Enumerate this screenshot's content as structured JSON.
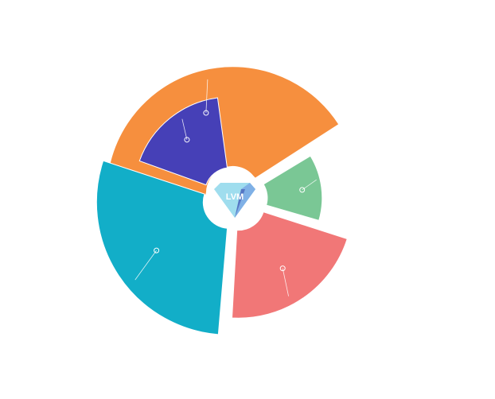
{
  "chart_data": {
    "type": "pie",
    "variant": "exploded-radial-segments",
    "title": "",
    "legend": "none",
    "slices": [
      {
        "name": "",
        "value": 51,
        "color": "#F68F3E"
      },
      {
        "name": "",
        "value": 29,
        "color": "#7AC795"
      },
      {
        "name": "",
        "value": 81,
        "color": "#F17777"
      },
      {
        "name": "",
        "value": 97,
        "color": "#12AEC8"
      },
      {
        "name": "",
        "value": 50,
        "color": "#4640B7"
      }
    ],
    "segment_angles_deg": [
      {
        "start": -95,
        "end": 58
      },
      {
        "start": 58,
        "end": 107
      },
      {
        "start": 107,
        "end": 184
      },
      {
        "start": 184,
        "end": 289
      },
      {
        "start": 289,
        "end": 353
      }
    ],
    "radii_fraction": [
      0.95,
      0.61,
      0.86,
      1.0,
      0.73
    ]
  },
  "center_logo": {
    "text": "LVM",
    "icon": "diamond-icon",
    "color_light": "#9FDDEE",
    "color_mid": "#7FB0E6",
    "color_dark": "#5576C4"
  }
}
